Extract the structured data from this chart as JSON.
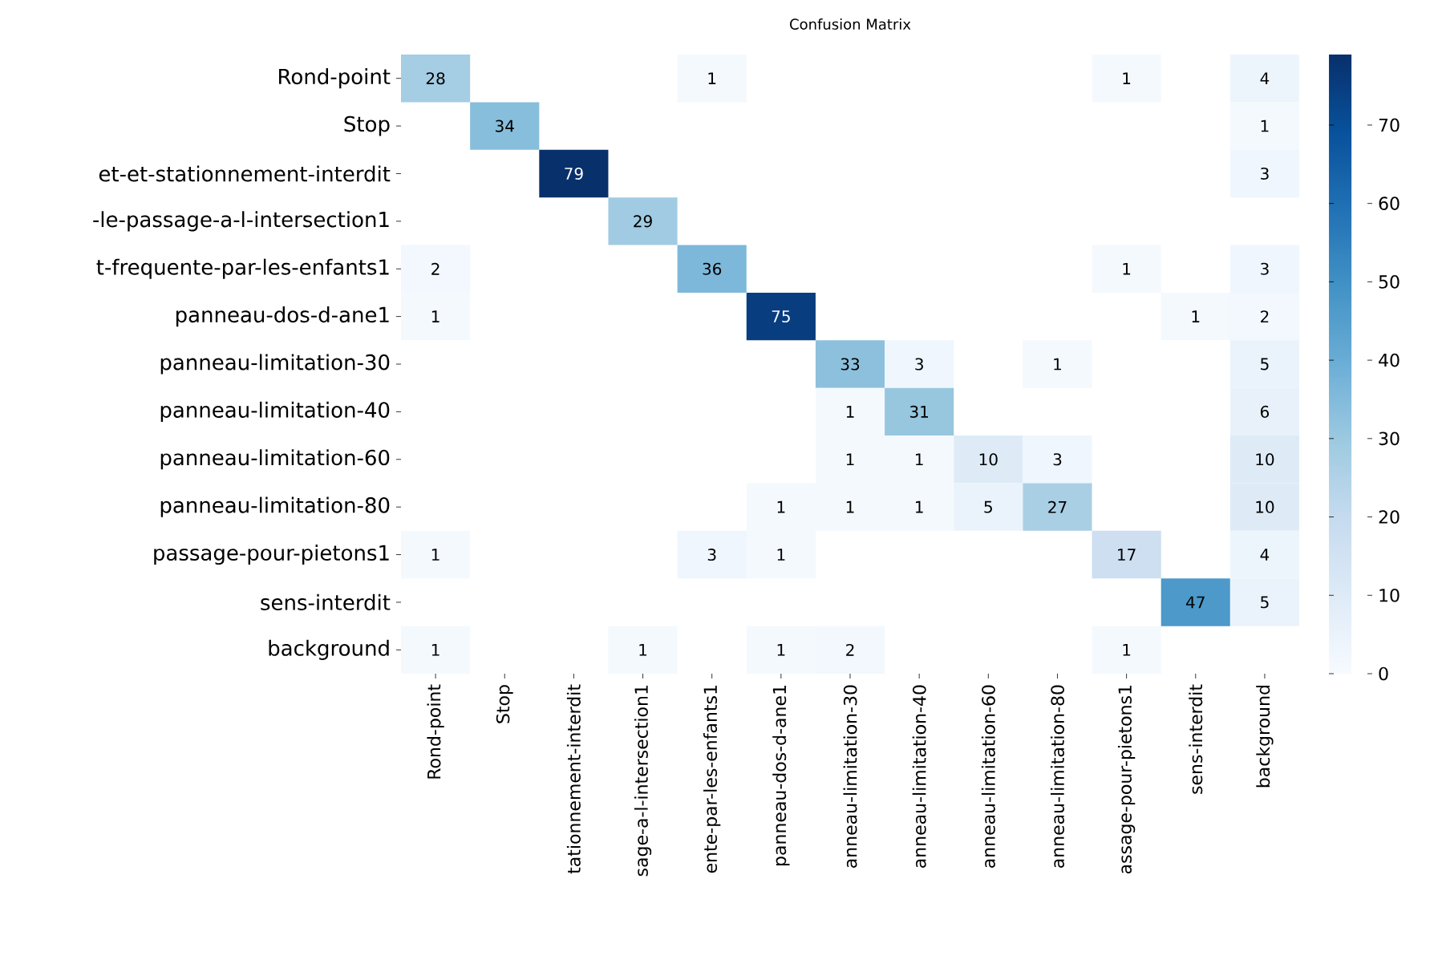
{
  "chart_data": {
    "type": "heatmap",
    "title": "Confusion Matrix",
    "categories": [
      "Rond-point",
      "Stop",
      "tationnement-interdit",
      "sage-a-l-intersection1",
      "ente-par-les-enfants1",
      "panneau-dos-d-ane1",
      "anneau-limitation-30",
      "anneau-limitation-40",
      "anneau-limitation-60",
      "anneau-limitation-80",
      "assage-pour-pietons1",
      "sens-interdit",
      "background"
    ],
    "y_categories": [
      "Rond-point",
      "Stop",
      "et-et-stationnement-interdit",
      "-le-passage-a-l-intersection1",
      "t-frequente-par-les-enfants1",
      "panneau-dos-d-ane1",
      "panneau-limitation-30",
      "panneau-limitation-40",
      "panneau-limitation-60",
      "panneau-limitation-80",
      "passage-pour-pietons1",
      "sens-interdit",
      "background"
    ],
    "cells": [
      [
        28,
        null,
        null,
        null,
        1,
        null,
        null,
        null,
        null,
        null,
        1,
        null,
        4
      ],
      [
        null,
        34,
        null,
        null,
        null,
        null,
        null,
        null,
        null,
        null,
        null,
        null,
        1
      ],
      [
        null,
        null,
        79,
        null,
        null,
        null,
        null,
        null,
        null,
        null,
        null,
        null,
        3
      ],
      [
        null,
        null,
        null,
        29,
        null,
        null,
        null,
        null,
        null,
        null,
        null,
        null,
        null
      ],
      [
        2,
        null,
        null,
        null,
        36,
        null,
        null,
        null,
        null,
        null,
        1,
        null,
        3
      ],
      [
        1,
        null,
        null,
        null,
        null,
        75,
        null,
        null,
        null,
        null,
        null,
        1,
        2
      ],
      [
        null,
        null,
        null,
        null,
        null,
        null,
        33,
        3,
        null,
        1,
        null,
        null,
        5
      ],
      [
        null,
        null,
        null,
        null,
        null,
        null,
        1,
        31,
        null,
        null,
        null,
        null,
        6
      ],
      [
        null,
        null,
        null,
        null,
        null,
        null,
        1,
        1,
        10,
        3,
        null,
        null,
        10
      ],
      [
        null,
        null,
        null,
        null,
        null,
        1,
        1,
        1,
        5,
        27,
        null,
        null,
        10
      ],
      [
        1,
        null,
        null,
        null,
        3,
        1,
        null,
        null,
        null,
        null,
        17,
        null,
        4
      ],
      [
        null,
        null,
        null,
        null,
        null,
        null,
        null,
        null,
        null,
        null,
        null,
        47,
        5
      ],
      [
        1,
        null,
        null,
        1,
        null,
        1,
        2,
        null,
        null,
        null,
        1,
        null,
        null
      ]
    ],
    "clim": [
      0,
      79
    ],
    "cticks": [
      0,
      10,
      20,
      30,
      40,
      50,
      60,
      70
    ],
    "data_labels": true
  }
}
